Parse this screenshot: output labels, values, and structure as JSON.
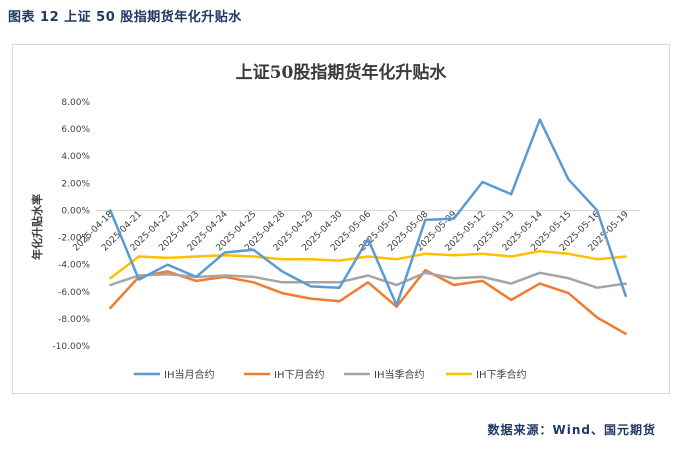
{
  "caption": "图表 12 上证 50 股指期货年化升贴水",
  "source": "数据来源：Wind、国元期货",
  "chart_data": {
    "type": "line",
    "title": "上证50股指期货年化升贴水",
    "xlabel": "",
    "ylabel": "年化升贴水率",
    "ylim": [
      -10,
      8
    ],
    "yticks": [
      "8.00%",
      "6.00%",
      "4.00%",
      "2.00%",
      "0.00%",
      "-2.00%",
      "-4.00%",
      "-6.00%",
      "-8.00%",
      "-10.00%"
    ],
    "categories": [
      "2025-04-18",
      "2025-04-21",
      "2025-04-22",
      "2025-04-23",
      "2025-04-24",
      "2025-04-25",
      "2025-04-28",
      "2025-04-29",
      "2025-04-30",
      "2025-05-06",
      "2025-05-07",
      "2025-05-08",
      "2025-05-09",
      "2025-05-12",
      "2025-05-13",
      "2025-05-14",
      "2025-05-15",
      "2025-05-16",
      "2025-05-19"
    ],
    "legend_position": "bottom",
    "series": [
      {
        "name": "IH当月合约",
        "color": "#5b9bd5",
        "values": [
          0.0,
          -5.1,
          -4.0,
          -4.9,
          -3.1,
          -2.9,
          -4.5,
          -5.6,
          -5.7,
          -2.1,
          -7.0,
          -0.7,
          -0.6,
          2.1,
          1.2,
          6.7,
          2.3,
          0.0,
          -6.3
        ]
      },
      {
        "name": "IH下月合约",
        "color": "#ed7d31",
        "values": [
          -7.2,
          -4.9,
          -4.5,
          -5.2,
          -4.9,
          -5.3,
          -6.1,
          -6.5,
          -6.7,
          -5.3,
          -7.1,
          -4.4,
          -5.5,
          -5.2,
          -6.6,
          -5.4,
          -6.1,
          -7.9,
          -9.1
        ]
      },
      {
        "name": "IH当季合约",
        "color": "#a5a5a5",
        "values": [
          -5.5,
          -4.8,
          -4.7,
          -4.9,
          -4.8,
          -4.9,
          -5.3,
          -5.3,
          -5.3,
          -4.8,
          -5.5,
          -4.6,
          -5.0,
          -4.9,
          -5.4,
          -4.6,
          -5.0,
          -5.7,
          -5.4
        ]
      },
      {
        "name": "IH下季合约",
        "color": "#ffc000",
        "values": [
          -5.0,
          -3.4,
          -3.5,
          -3.4,
          -3.3,
          -3.4,
          -3.6,
          -3.6,
          -3.7,
          -3.4,
          -3.6,
          -3.2,
          -3.3,
          -3.2,
          -3.4,
          -3.0,
          -3.2,
          -3.6,
          -3.4
        ]
      }
    ]
  }
}
